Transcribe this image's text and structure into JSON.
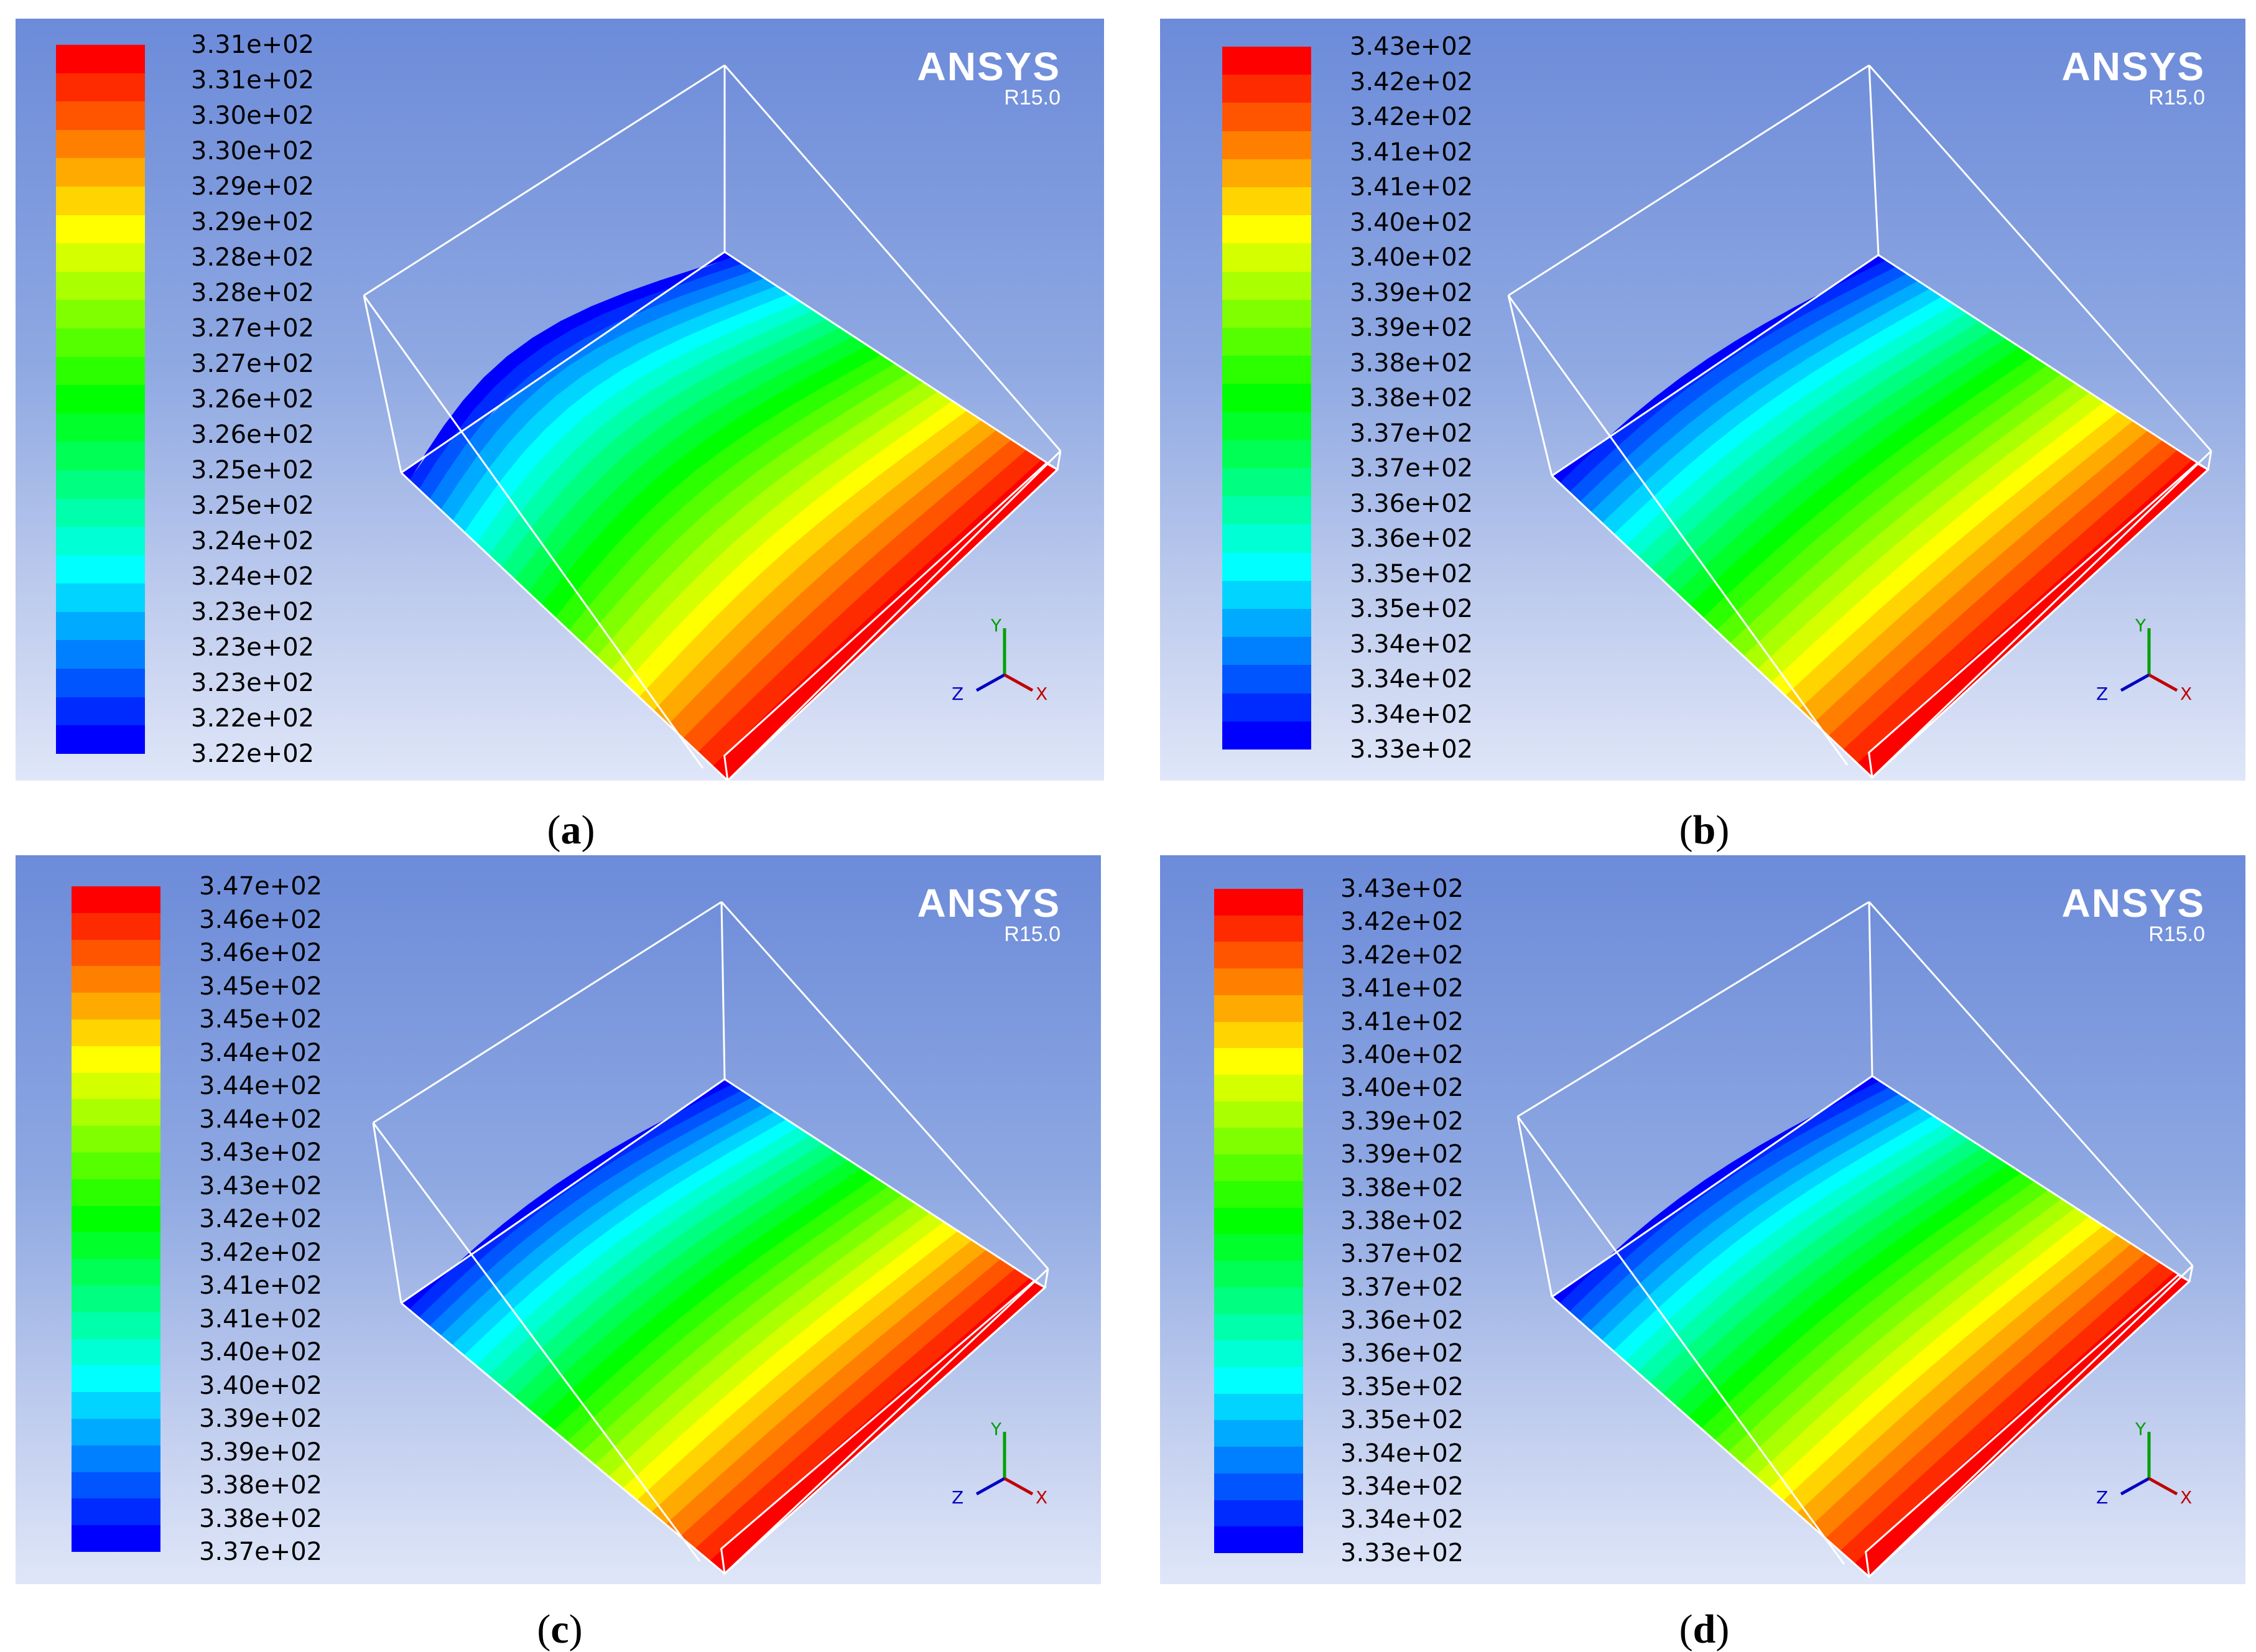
{
  "brand": {
    "name": "ANSYS",
    "version": "R15.0"
  },
  "colors": {
    "scale": [
      "#ff0000",
      "#ff2b00",
      "#ff5500",
      "#ff8000",
      "#ffaa00",
      "#ffd400",
      "#ffff00",
      "#d4ff00",
      "#aaff00",
      "#80ff00",
      "#55ff00",
      "#2bff00",
      "#00ff00",
      "#00ff2b",
      "#00ff55",
      "#00ff80",
      "#00ffaa",
      "#00ffd4",
      "#00ffff",
      "#00d4ff",
      "#00aaff",
      "#0080ff",
      "#0055ff",
      "#002bff",
      "#0000ff"
    ],
    "frame": "#ffffff"
  },
  "axes": {
    "y": "Y",
    "z": "Z",
    "x": "X"
  },
  "panels": [
    {
      "id": "a",
      "caption_letter": "a",
      "legend": [
        "3.31e+02",
        "3.31e+02",
        "3.30e+02",
        "3.30e+02",
        "3.29e+02",
        "3.29e+02",
        "3.28e+02",
        "3.28e+02",
        "3.27e+02",
        "3.27e+02",
        "3.26e+02",
        "3.26e+02",
        "3.25e+02",
        "3.25e+02",
        "3.24e+02",
        "3.24e+02",
        "3.23e+02",
        "3.23e+02",
        "3.23e+02",
        "3.22e+02",
        "3.22e+02"
      ]
    },
    {
      "id": "b",
      "caption_letter": "b",
      "legend": [
        "3.43e+02",
        "3.42e+02",
        "3.42e+02",
        "3.41e+02",
        "3.41e+02",
        "3.40e+02",
        "3.40e+02",
        "3.39e+02",
        "3.39e+02",
        "3.38e+02",
        "3.38e+02",
        "3.37e+02",
        "3.37e+02",
        "3.36e+02",
        "3.36e+02",
        "3.35e+02",
        "3.35e+02",
        "3.34e+02",
        "3.34e+02",
        "3.34e+02",
        "3.33e+02"
      ]
    },
    {
      "id": "c",
      "caption_letter": "c",
      "legend": [
        "3.47e+02",
        "3.46e+02",
        "3.46e+02",
        "3.45e+02",
        "3.45e+02",
        "3.44e+02",
        "3.44e+02",
        "3.44e+02",
        "3.43e+02",
        "3.43e+02",
        "3.42e+02",
        "3.42e+02",
        "3.41e+02",
        "3.41e+02",
        "3.40e+02",
        "3.40e+02",
        "3.39e+02",
        "3.39e+02",
        "3.38e+02",
        "3.38e+02",
        "3.37e+02"
      ]
    },
    {
      "id": "d",
      "caption_letter": "d",
      "legend": [
        "3.43e+02",
        "3.42e+02",
        "3.42e+02",
        "3.41e+02",
        "3.41e+02",
        "3.40e+02",
        "3.40e+02",
        "3.39e+02",
        "3.39e+02",
        "3.38e+02",
        "3.38e+02",
        "3.37e+02",
        "3.37e+02",
        "3.36e+02",
        "3.36e+02",
        "3.35e+02",
        "3.35e+02",
        "3.34e+02",
        "3.34e+02",
        "3.34e+02",
        "3.33e+02"
      ]
    }
  ]
}
